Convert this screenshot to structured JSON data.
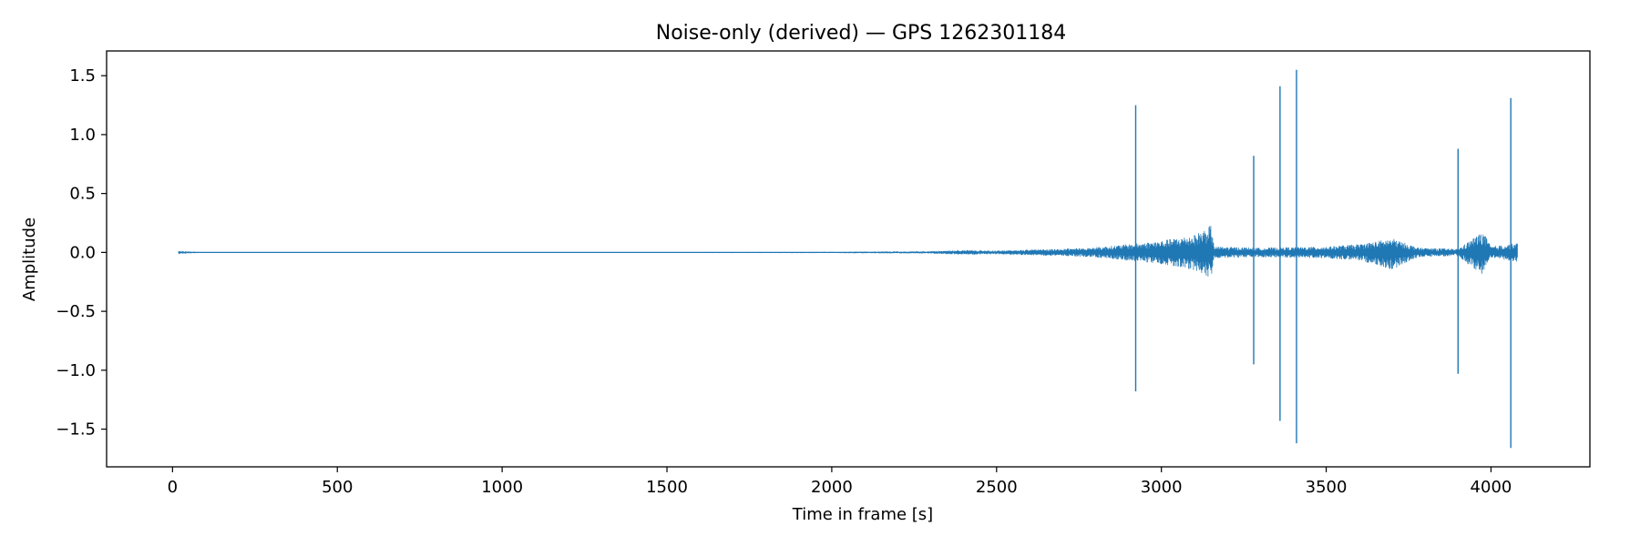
{
  "chart_data": {
    "type": "line",
    "title": "Noise-only (derived) — GPS 1262301184",
    "xlabel": "Time in frame [s]",
    "ylabel": "Amplitude",
    "xlim": [
      -200,
      4300
    ],
    "ylim": [
      -1.82,
      1.71
    ],
    "xticks": [
      0,
      500,
      1000,
      1500,
      2000,
      2500,
      3000,
      3500,
      4000
    ],
    "xtick_labels": [
      "0",
      "500",
      "1000",
      "1500",
      "2000",
      "2500",
      "3000",
      "3500",
      "4000"
    ],
    "yticks": [
      -1.5,
      -1.0,
      -0.5,
      0.0,
      0.5,
      1.0,
      1.5
    ],
    "ytick_labels": [
      "−1.5",
      "−1.0",
      "−0.5",
      "0.0",
      "0.5",
      "1.0",
      "1.5"
    ],
    "grid": false,
    "line_color": "#1f77b4",
    "x_range": [
      18,
      4080
    ],
    "envelope": [
      {
        "x": 18,
        "upper": 0.012,
        "lower": -0.012
      },
      {
        "x": 100,
        "upper": 0.004,
        "lower": -0.004
      },
      {
        "x": 1000,
        "upper": 0.004,
        "lower": -0.004
      },
      {
        "x": 2000,
        "upper": 0.006,
        "lower": -0.006
      },
      {
        "x": 2300,
        "upper": 0.01,
        "lower": -0.01
      },
      {
        "x": 2400,
        "upper": 0.02,
        "lower": -0.02
      },
      {
        "x": 2500,
        "upper": 0.015,
        "lower": -0.015
      },
      {
        "x": 2600,
        "upper": 0.025,
        "lower": -0.025
      },
      {
        "x": 2700,
        "upper": 0.03,
        "lower": -0.03
      },
      {
        "x": 2800,
        "upper": 0.045,
        "lower": -0.045
      },
      {
        "x": 2900,
        "upper": 0.07,
        "lower": -0.07
      },
      {
        "x": 3000,
        "upper": 0.1,
        "lower": -0.1
      },
      {
        "x": 3100,
        "upper": 0.15,
        "lower": -0.15
      },
      {
        "x": 3150,
        "upper": 0.23,
        "lower": -0.24
      },
      {
        "x": 3160,
        "upper": 0.05,
        "lower": -0.05
      },
      {
        "x": 3300,
        "upper": 0.04,
        "lower": -0.04
      },
      {
        "x": 3500,
        "upper": 0.05,
        "lower": -0.05
      },
      {
        "x": 3600,
        "upper": 0.07,
        "lower": -0.07
      },
      {
        "x": 3700,
        "upper": 0.12,
        "lower": -0.15
      },
      {
        "x": 3780,
        "upper": 0.04,
        "lower": -0.04
      },
      {
        "x": 3900,
        "upper": 0.03,
        "lower": -0.03
      },
      {
        "x": 3975,
        "upper": 0.18,
        "lower": -0.2
      },
      {
        "x": 4000,
        "upper": 0.05,
        "lower": -0.05
      },
      {
        "x": 4080,
        "upper": 0.08,
        "lower": -0.08
      }
    ],
    "spikes": [
      {
        "x": 2922,
        "max": 1.25,
        "min": -1.18
      },
      {
        "x": 3280,
        "max": 0.82,
        "min": -0.95
      },
      {
        "x": 3360,
        "max": 1.41,
        "min": -1.43
      },
      {
        "x": 3410,
        "max": 1.55,
        "min": -1.62
      },
      {
        "x": 3900,
        "max": 0.88,
        "min": -1.03
      },
      {
        "x": 4060,
        "max": 1.31,
        "min": -1.66
      }
    ]
  }
}
